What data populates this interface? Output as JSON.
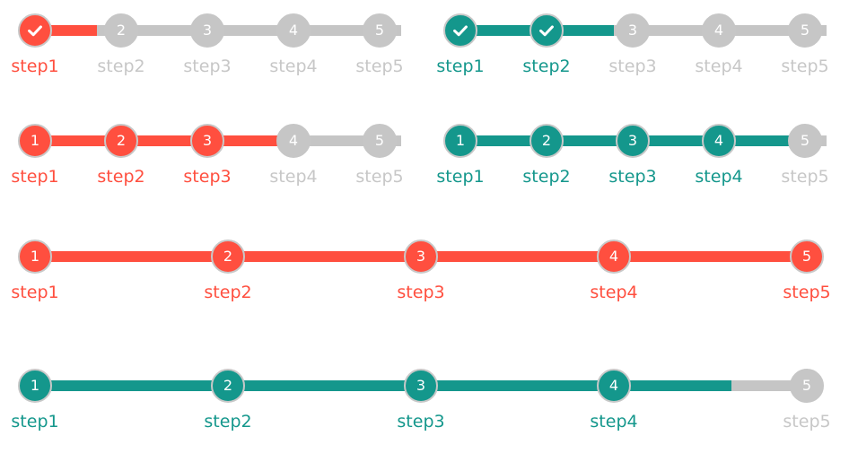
{
  "steppers": [
    {
      "theme": "red",
      "variant": "icon",
      "progress_percent": 17,
      "steps": [
        {
          "label": "step1",
          "badge": "",
          "state": "completed",
          "icon": "check-icon"
        },
        {
          "label": "step2",
          "badge": "2",
          "state": "inactive",
          "icon": ""
        },
        {
          "label": "step3",
          "badge": "3",
          "state": "inactive",
          "icon": ""
        },
        {
          "label": "step4",
          "badge": "4",
          "state": "inactive",
          "icon": ""
        },
        {
          "label": "step5",
          "badge": "5",
          "state": "inactive",
          "icon": ""
        }
      ]
    },
    {
      "theme": "teal",
      "variant": "icon",
      "progress_percent": 42,
      "steps": [
        {
          "label": "step1",
          "badge": "",
          "state": "completed",
          "icon": "check-icon"
        },
        {
          "label": "step2",
          "badge": "",
          "state": "completed",
          "icon": "check-icon"
        },
        {
          "label": "step3",
          "badge": "3",
          "state": "inactive",
          "icon": ""
        },
        {
          "label": "step4",
          "badge": "4",
          "state": "inactive",
          "icon": ""
        },
        {
          "label": "step5",
          "badge": "5",
          "state": "inactive",
          "icon": ""
        }
      ]
    },
    {
      "theme": "red",
      "variant": "number",
      "progress_percent": 68,
      "steps": [
        {
          "label": "step1",
          "badge": "1",
          "state": "completed",
          "icon": ""
        },
        {
          "label": "step2",
          "badge": "2",
          "state": "completed",
          "icon": ""
        },
        {
          "label": "step3",
          "badge": "3",
          "state": "completed",
          "icon": ""
        },
        {
          "label": "step4",
          "badge": "4",
          "state": "inactive",
          "icon": ""
        },
        {
          "label": "step5",
          "badge": "5",
          "state": "inactive",
          "icon": ""
        }
      ]
    },
    {
      "theme": "teal",
      "variant": "number",
      "progress_percent": 93,
      "steps": [
        {
          "label": "step1",
          "badge": "1",
          "state": "completed",
          "icon": ""
        },
        {
          "label": "step2",
          "badge": "2",
          "state": "completed",
          "icon": ""
        },
        {
          "label": "step3",
          "badge": "3",
          "state": "completed",
          "icon": ""
        },
        {
          "label": "step4",
          "badge": "4",
          "state": "completed",
          "icon": ""
        },
        {
          "label": "step5",
          "badge": "5",
          "state": "inactive",
          "icon": ""
        }
      ]
    },
    {
      "theme": "red",
      "variant": "number",
      "progress_percent": 100,
      "steps": [
        {
          "label": "step1",
          "badge": "1",
          "state": "completed",
          "icon": ""
        },
        {
          "label": "step2",
          "badge": "2",
          "state": "completed",
          "icon": ""
        },
        {
          "label": "step3",
          "badge": "3",
          "state": "completed",
          "icon": ""
        },
        {
          "label": "step4",
          "badge": "4",
          "state": "completed",
          "icon": ""
        },
        {
          "label": "step5",
          "badge": "5",
          "state": "completed",
          "icon": ""
        }
      ]
    },
    {
      "theme": "teal",
      "variant": "number",
      "progress_percent": 90,
      "steps": [
        {
          "label": "step1",
          "badge": "1",
          "state": "completed",
          "icon": ""
        },
        {
          "label": "step2",
          "badge": "2",
          "state": "completed",
          "icon": ""
        },
        {
          "label": "step3",
          "badge": "3",
          "state": "completed",
          "icon": ""
        },
        {
          "label": "step4",
          "badge": "4",
          "state": "completed",
          "icon": ""
        },
        {
          "label": "step5",
          "badge": "5",
          "state": "inactive",
          "icon": ""
        }
      ]
    }
  ],
  "colors": {
    "red": "#ff4f3f",
    "teal": "#14978c",
    "inactive": "#c6c6c6"
  }
}
